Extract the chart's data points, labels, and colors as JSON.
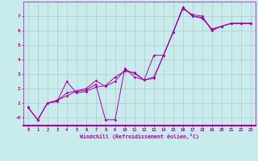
{
  "xlabel": "Windchill (Refroidissement éolien,°C)",
  "bg_color": "#c8ecec",
  "line_color": "#aa00aa",
  "grid_color": "#aacccc",
  "xlim": [
    -0.5,
    23.5
  ],
  "ylim": [
    -0.55,
    8.0
  ],
  "xticks": [
    0,
    1,
    2,
    3,
    4,
    5,
    6,
    7,
    8,
    9,
    10,
    11,
    12,
    13,
    14,
    15,
    16,
    17,
    18,
    19,
    20,
    21,
    22,
    23
  ],
  "yticks": [
    0,
    1,
    2,
    3,
    4,
    5,
    6,
    7
  ],
  "ytick_labels": [
    "-0",
    "1",
    "2",
    "3",
    "4",
    "5",
    "6",
    "7"
  ],
  "line1_x": [
    0,
    1,
    2,
    3,
    4,
    5,
    6,
    7,
    8,
    9,
    10,
    11,
    12,
    13,
    14,
    15,
    16,
    17,
    18,
    19,
    20,
    21,
    22,
    23
  ],
  "line1_y": [
    0.7,
    -0.15,
    1.0,
    1.1,
    2.5,
    1.7,
    1.8,
    2.1,
    2.2,
    2.8,
    3.2,
    3.1,
    2.6,
    4.3,
    4.3,
    5.9,
    7.5,
    7.1,
    7.0,
    6.0,
    6.3,
    6.5,
    6.5,
    6.5
  ],
  "line2_x": [
    0,
    1,
    2,
    3,
    4,
    5,
    6,
    7,
    8,
    9,
    10,
    11,
    12,
    13,
    14,
    15,
    16,
    17,
    18,
    19,
    20,
    21,
    22,
    23
  ],
  "line2_y": [
    0.7,
    -0.15,
    1.0,
    1.2,
    1.5,
    1.8,
    1.9,
    2.3,
    -0.15,
    -0.15,
    3.4,
    2.8,
    2.6,
    2.7,
    4.3,
    5.9,
    7.6,
    7.0,
    6.9,
    6.1,
    6.3,
    6.5,
    6.5,
    6.5
  ],
  "line3_x": [
    0,
    1,
    2,
    3,
    4,
    5,
    6,
    7,
    8,
    9,
    10,
    11,
    12,
    13,
    14,
    15,
    16,
    17,
    18,
    19,
    20,
    21,
    22,
    23
  ],
  "line3_y": [
    0.7,
    -0.15,
    1.0,
    1.15,
    1.7,
    1.85,
    2.0,
    2.55,
    2.15,
    2.5,
    3.3,
    3.05,
    2.6,
    2.8,
    4.3,
    5.9,
    7.6,
    7.0,
    6.85,
    6.1,
    6.3,
    6.5,
    6.5,
    6.5
  ]
}
